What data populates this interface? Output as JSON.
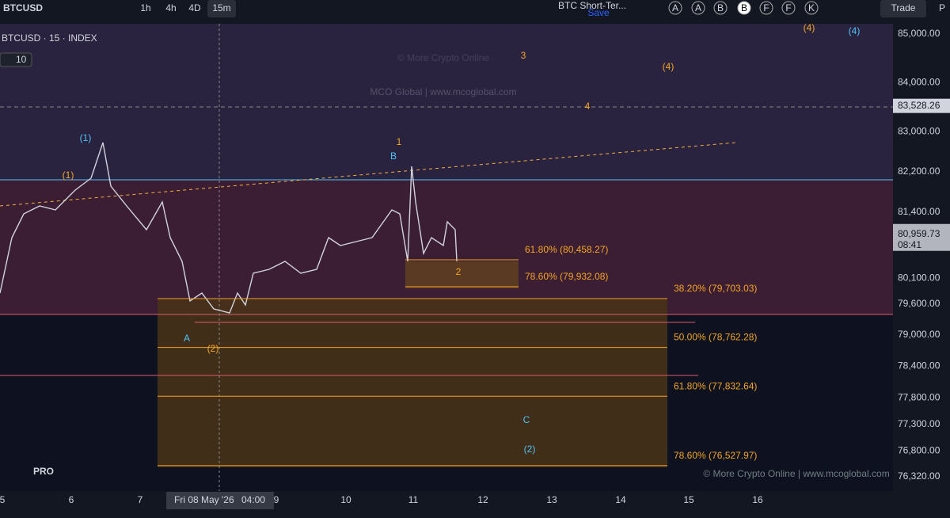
{
  "toolbar": {
    "symbol": "BTCUSD",
    "intervals": [
      "1h",
      "4h",
      "4D",
      "15m"
    ],
    "layout_name": "BTC Short-Ter...",
    "save": "Save",
    "letters": [
      "A",
      "A",
      "B",
      "B",
      "F",
      "F",
      "K"
    ],
    "trade": "Trade",
    "cut": "P"
  },
  "legend": {
    "title": "BTCUSD · 15 · INDEX",
    "indicator": "10"
  },
  "watermark": {
    "main": "© More Crypto Online",
    "sub": "MCO Global  |  www.mcoglobal.com",
    "footer": "© More Crypto Online  |  www.mcoglobal.com",
    "brand": "PRO"
  },
  "price_axis": {
    "labels": [
      "85,000.00",
      "84,000.00",
      "83,000.00",
      "82,200.00",
      "81,400.00",
      "80,100.00",
      "79,600.00",
      "79,000.00",
      "78,400.00",
      "77,800.00",
      "77,300.00",
      "76,800.00",
      "76,320.00"
    ],
    "marker": "83,528.26",
    "current": "80,959.73",
    "countdown": "08:41"
  },
  "time_axis": {
    "labels": [
      "5",
      "6",
      "7",
      "9",
      "10",
      "11",
      "12",
      "13",
      "14",
      "15",
      "16"
    ],
    "cursor_date": "Fri 08 May '26",
    "cursor_time": "04:00"
  },
  "fib_levels": [
    "61.80% (80,458.27)",
    "78.60% (79,932.08)",
    "38.20% (79,703.03)",
    "50.00% (78,762.28)",
    "61.80% (77,832.64)",
    "78.60% (76,527.97)"
  ],
  "waves": [
    "(1)",
    "(1)",
    "3",
    "(4)",
    "4",
    "1",
    "B",
    "2",
    "A",
    "(2)",
    "C",
    "(2)",
    "(4)",
    "(4)"
  ]
}
